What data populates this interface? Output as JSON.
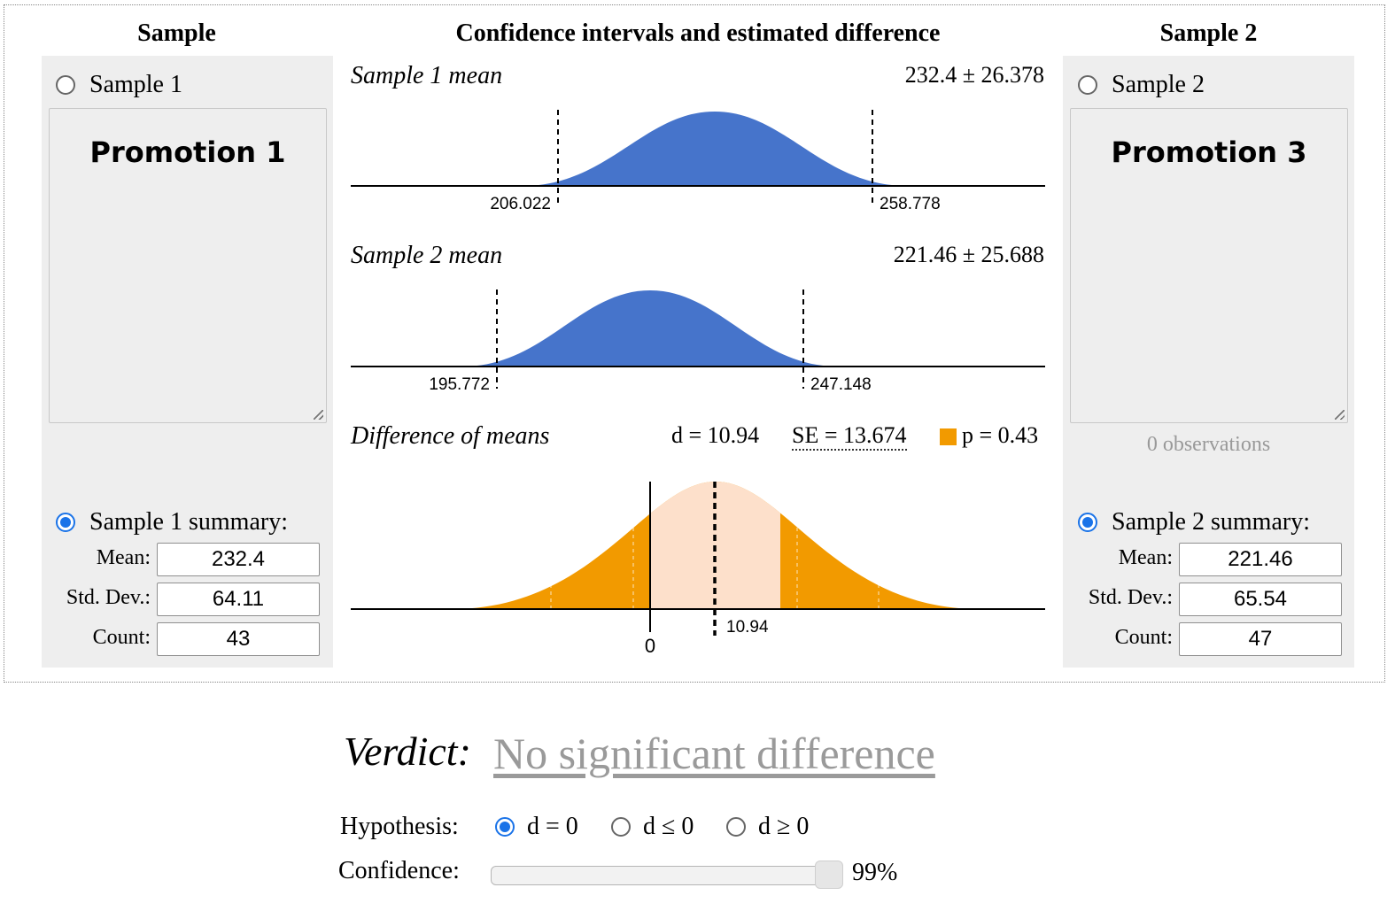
{
  "headers": {
    "left": "Sample",
    "center": "Confidence intervals and estimated difference",
    "right": "Sample 2"
  },
  "sample1": {
    "raw_label": "Sample 1",
    "textarea_text": "Promotion 1",
    "summary_label": "Sample 1 summary:",
    "mean_label": "Mean:",
    "std_label": "Std. Dev.:",
    "count_label": "Count:",
    "mean": "232.4",
    "std": "64.11",
    "count": "43",
    "summary_selected": true
  },
  "sample2": {
    "raw_label": "Sample 2",
    "textarea_text": "Promotion 3",
    "observations": "0 observations",
    "summary_label": "Sample 2 summary:",
    "mean_label": "Mean:",
    "std_label": "Std. Dev.:",
    "count_label": "Count:",
    "mean": "221.46",
    "std": "65.54",
    "count": "47",
    "summary_selected": true
  },
  "panels": {
    "mean1": {
      "title": "Sample 1 mean",
      "value": "232.4 ± 26.378",
      "lower": "206.022",
      "upper": "258.778"
    },
    "mean2": {
      "title": "Sample 2 mean",
      "value": "221.46 ± 25.688",
      "lower": "195.772",
      "upper": "247.148"
    },
    "diff": {
      "title": "Difference of means",
      "d": "d = 10.94",
      "se": "SE = 13.674",
      "p": "p = 0.43",
      "zero_label": "0",
      "d_label": "10.94"
    }
  },
  "colors": {
    "density": "#4674cb",
    "tail": "#f29a00",
    "center_band": "#fde0cb",
    "accent": "#1a73e8"
  },
  "verdict": {
    "label": "Verdict:",
    "value": "No significant difference"
  },
  "hypothesis": {
    "label": "Hypothesis:",
    "options": [
      {
        "label": "d = 0",
        "selected": true
      },
      {
        "label": "d ≤ 0",
        "selected": false
      },
      {
        "label": "d ≥ 0",
        "selected": false
      }
    ]
  },
  "confidence": {
    "label": "Confidence:",
    "value": "99%",
    "level": 0.99
  }
}
